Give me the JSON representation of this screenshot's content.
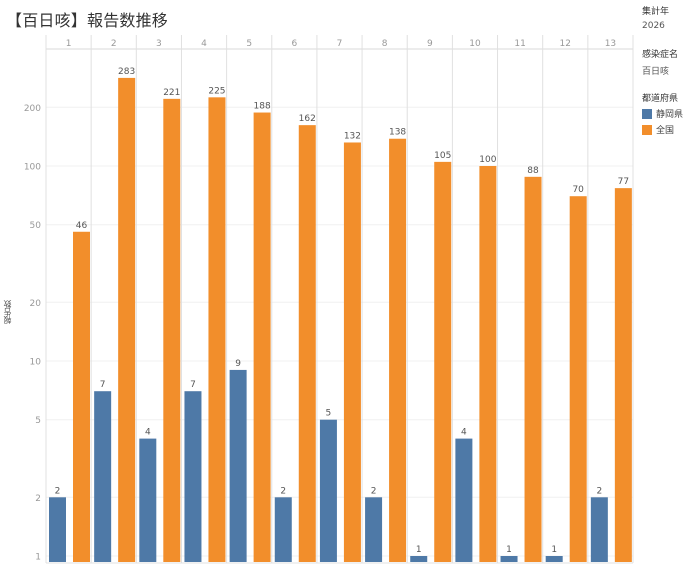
{
  "title": "【百日咳】報告数推移",
  "filters": {
    "year": {
      "label": "集計年",
      "value": "2026"
    },
    "disease": {
      "label": "感染症名",
      "value": "百日咳"
    }
  },
  "legend": {
    "title": "都道府県",
    "items": [
      {
        "label": "静岡県",
        "color": "#4e79a7"
      },
      {
        "label": "全国",
        "color": "#f28e2b"
      }
    ]
  },
  "colors": {
    "shizuoka": "#4e79a7",
    "national": "#f28e2b",
    "grid": "#e6e6e6",
    "axis_text": "#888888"
  },
  "chart_data": {
    "type": "bar",
    "title": "【百日咳】報告数推移",
    "xlabel": "",
    "ylabel": "報告数",
    "yscale": "log",
    "ylim": [
      1,
      398
    ],
    "yticks": [
      1,
      2,
      5,
      10,
      20,
      50,
      100,
      200
    ],
    "grid": true,
    "legend_position": "right",
    "categories": [
      "1",
      "2",
      "3",
      "4",
      "5",
      "6",
      "7",
      "8",
      "9",
      "10",
      "11",
      "12",
      "13"
    ],
    "series": [
      {
        "name": "静岡県",
        "color": "#4e79a7",
        "values": [
          2,
          7,
          4,
          7,
          9,
          2,
          5,
          2,
          1,
          4,
          1,
          1,
          2
        ]
      },
      {
        "name": "全国",
        "color": "#f28e2b",
        "values": [
          46,
          283,
          221,
          225,
          188,
          162,
          132,
          138,
          105,
          100,
          88,
          70,
          77
        ]
      }
    ]
  }
}
